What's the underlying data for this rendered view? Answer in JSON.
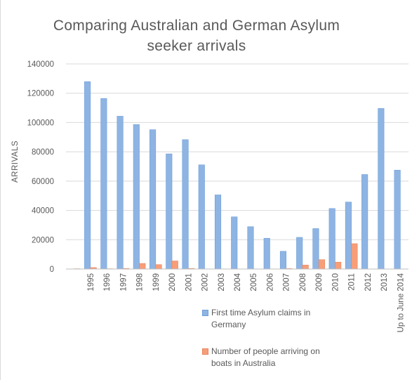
{
  "chart_data": {
    "type": "bar",
    "title": "Comparing Australian and German Asylum seeker arrivals",
    "ylabel": "ARRIVALS",
    "xlabel": "",
    "ylim": [
      0,
      140000
    ],
    "yticks": [
      "0",
      "20000",
      "40000",
      "60000",
      "80000",
      "100000",
      "120000",
      "140000"
    ],
    "categories": [
      "",
      "1995",
      "1996",
      "1997",
      "1998",
      "1999",
      "2000",
      "2001",
      "2002",
      "2003",
      "2004",
      "2005",
      "2006",
      "2007",
      "2008",
      "2009",
      "2010",
      "2011",
      "2012",
      "2013",
      "Up to June 2014"
    ],
    "series": [
      {
        "name": "First time Asylum claims in Germany",
        "color": "#8eb4e3",
        "values": [
          null,
          127900,
          116400,
          104300,
          98600,
          95100,
          78600,
          88300,
          71100,
          50600,
          35600,
          28900,
          21000,
          12100,
          21600,
          27600,
          41300,
          45700,
          64500,
          109600,
          67500
        ]
      },
      {
        "name": "Number of people arriving on boats in Australia",
        "color": "#f79e79",
        "values": [
          200,
          1000,
          200,
          400,
          3800,
          3000,
          5500,
          400,
          100,
          100,
          100,
          100,
          100,
          300,
          2700,
          6400,
          4700,
          17300,
          0,
          0,
          0
        ]
      }
    ],
    "legend_position": "bottom",
    "gridlines": true
  }
}
